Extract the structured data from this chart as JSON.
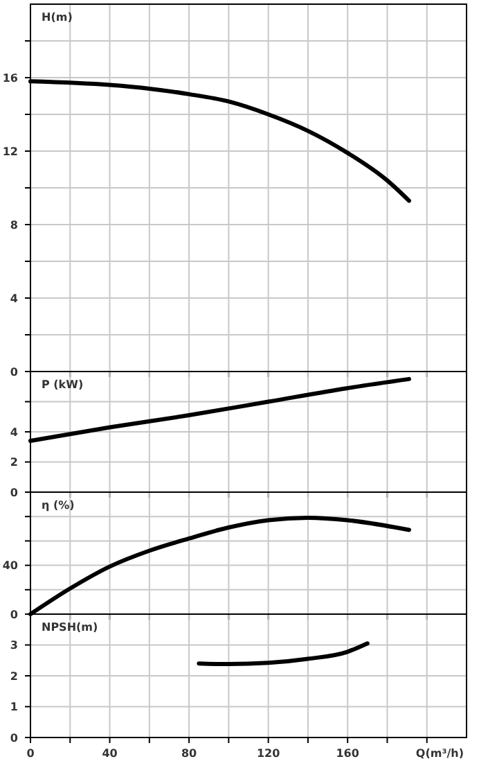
{
  "chart_data": [
    {
      "type": "line",
      "ylabel": "H(m)",
      "xlim": [
        0,
        220
      ],
      "xticks": [
        {
          "value": 0,
          "label": null
        },
        {
          "value": 20,
          "label": null
        },
        {
          "value": 40,
          "label": null
        },
        {
          "value": 60,
          "label": null
        },
        {
          "value": 80,
          "label": null
        },
        {
          "value": 100,
          "label": null
        },
        {
          "value": 120,
          "label": null
        },
        {
          "value": 140,
          "label": null
        },
        {
          "value": 160,
          "label": null
        },
        {
          "value": 180,
          "label": null
        },
        {
          "value": 200,
          "label": null
        }
      ],
      "ylim": [
        0,
        20
      ],
      "yticks": [
        0,
        {
          "value": 2,
          "label": null
        },
        4,
        {
          "value": 6,
          "label": null
        },
        8,
        {
          "value": 10,
          "label": null
        },
        12,
        {
          "value": 14,
          "label": null
        },
        16,
        {
          "value": 18,
          "label": null
        }
      ],
      "grid": true,
      "tick_labels": "y",
      "line_style": "solid",
      "marker": "none",
      "series": [
        {
          "color": "#000000",
          "x": [
            0,
            40,
            60,
            80,
            100,
            120,
            140,
            160,
            180,
            191
          ],
          "values": [
            15.8,
            15.6,
            15.4,
            15.1,
            14.7,
            14.0,
            13.1,
            11.9,
            10.4,
            9.3
          ]
        }
      ]
    },
    {
      "type": "line",
      "ylabel": "P (kW)",
      "xlim": [
        0,
        220
      ],
      "xticks": [
        {
          "value": 0,
          "label": null
        },
        {
          "value": 20,
          "label": null
        },
        {
          "value": 40,
          "label": null
        },
        {
          "value": 60,
          "label": null
        },
        {
          "value": 80,
          "label": null
        },
        {
          "value": 100,
          "label": null
        },
        {
          "value": 120,
          "label": null
        },
        {
          "value": 140,
          "label": null
        },
        {
          "value": 160,
          "label": null
        },
        {
          "value": 180,
          "label": null
        },
        {
          "value": 200,
          "label": null
        }
      ],
      "ylim": [
        0,
        8
      ],
      "yticks": [
        0,
        2,
        4,
        {
          "value": 6,
          "label": null
        }
      ],
      "grid": true,
      "tick_labels": "y",
      "line_style": "solid",
      "marker": "none",
      "series": [
        {
          "color": "#000000",
          "x": [
            0,
            40,
            80,
            120,
            160,
            191
          ],
          "values": [
            3.4,
            4.3,
            5.1,
            6.0,
            6.9,
            7.5
          ]
        }
      ]
    },
    {
      "type": "line",
      "ylabel": "η (%)",
      "xlim": [
        0,
        220
      ],
      "xticks": [
        {
          "value": 0,
          "label": null
        },
        {
          "value": 20,
          "label": null
        },
        {
          "value": 40,
          "label": null
        },
        {
          "value": 60,
          "label": null
        },
        {
          "value": 80,
          "label": null
        },
        {
          "value": 100,
          "label": null
        },
        {
          "value": 120,
          "label": null
        },
        {
          "value": 140,
          "label": null
        },
        {
          "value": 160,
          "label": null
        },
        {
          "value": 180,
          "label": null
        },
        {
          "value": 200,
          "label": null
        }
      ],
      "ylim": [
        0,
        100
      ],
      "yticks": [
        0,
        {
          "value": 20,
          "label": null
        },
        40,
        {
          "value": 60,
          "label": null
        },
        {
          "value": 80,
          "label": null
        }
      ],
      "grid": true,
      "tick_labels": "y",
      "line_style": "solid",
      "marker": "none",
      "series": [
        {
          "color": "#000000",
          "x": [
            0,
            20,
            40,
            60,
            80,
            100,
            120,
            140,
            160,
            191
          ],
          "values": [
            0,
            21,
            39,
            52,
            62,
            71,
            77,
            79,
            77,
            69
          ]
        }
      ]
    },
    {
      "type": "line",
      "ylabel": "NPSH(m)",
      "xlabel": "Q(m³/h)",
      "xlim": [
        0,
        220
      ],
      "xticks": [
        0,
        {
          "value": 20,
          "label": null
        },
        40,
        {
          "value": 60,
          "label": null
        },
        80,
        {
          "value": 100,
          "label": null
        },
        120,
        {
          "value": 140,
          "label": null
        },
        160,
        {
          "value": 180,
          "label": null
        },
        {
          "value": 200,
          "label": null
        }
      ],
      "ylim": [
        0,
        4
      ],
      "yticks": [
        0,
        1,
        2,
        3
      ],
      "grid": true,
      "line_style": "solid",
      "marker": "none",
      "series": [
        {
          "color": "#000000",
          "x": [
            85,
            100,
            120,
            140,
            160,
            170
          ],
          "values": [
            2.4,
            2.38,
            2.42,
            2.55,
            2.78,
            3.05
          ]
        }
      ]
    }
  ]
}
